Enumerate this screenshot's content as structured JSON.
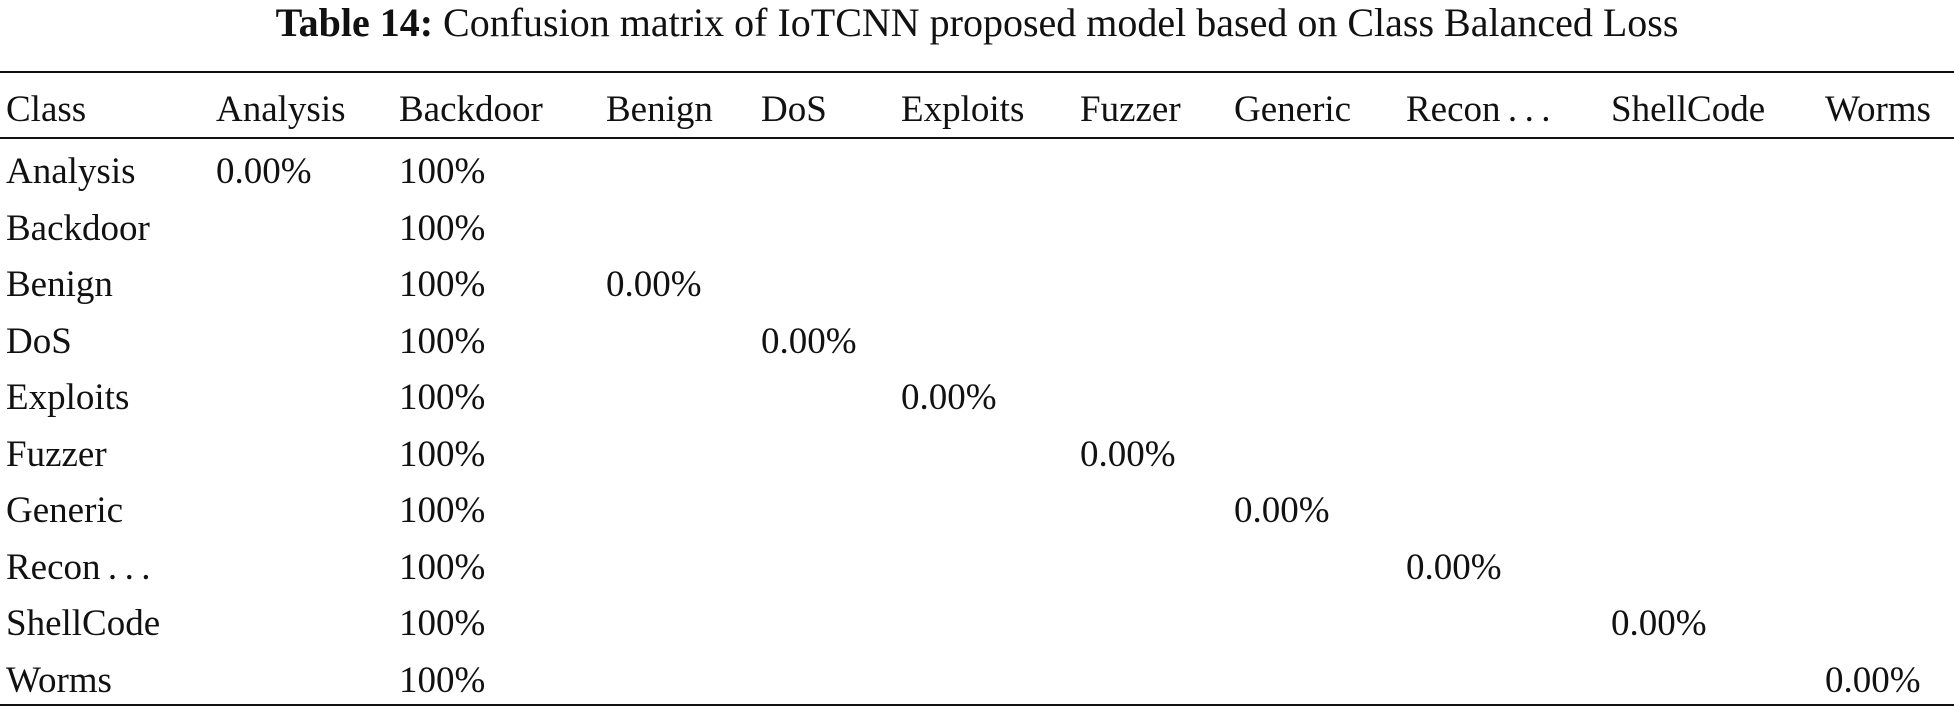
{
  "title": {
    "label": "Table 14:",
    "text": "Confusion matrix of IoTCNN proposed model based on Class Balanced Loss"
  },
  "table": {
    "header": [
      "Class",
      "Analysis",
      "Backdoor",
      "Benign",
      "DoS",
      "Exploits",
      "Fuzzer",
      "Generic",
      "Recon . . .",
      "ShellCode",
      "Worms"
    ],
    "rows": [
      [
        "Analysis",
        "0.00%",
        "100%",
        null,
        null,
        null,
        null,
        null,
        null,
        null,
        null
      ],
      [
        "Backdoor",
        null,
        "100%",
        null,
        null,
        null,
        null,
        null,
        null,
        null,
        null
      ],
      [
        "Benign",
        null,
        "100%",
        "0.00%",
        null,
        null,
        null,
        null,
        null,
        null,
        null
      ],
      [
        "DoS",
        null,
        "100%",
        null,
        "0.00%",
        null,
        null,
        null,
        null,
        null,
        null
      ],
      [
        "Exploits",
        null,
        "100%",
        null,
        null,
        "0.00%",
        null,
        null,
        null,
        null,
        null
      ],
      [
        "Fuzzer",
        null,
        "100%",
        null,
        null,
        null,
        "0.00%",
        null,
        null,
        null,
        null
      ],
      [
        "Generic",
        null,
        "100%",
        null,
        null,
        null,
        null,
        "0.00%",
        null,
        null,
        null
      ],
      [
        "Recon . . .",
        null,
        "100%",
        null,
        null,
        null,
        null,
        null,
        "0.00%",
        null,
        null
      ],
      [
        "ShellCode",
        null,
        "100%",
        null,
        null,
        null,
        null,
        null,
        null,
        "0.00%",
        null
      ],
      [
        "Worms",
        null,
        "100%",
        null,
        null,
        null,
        null,
        null,
        null,
        null,
        "0.00%"
      ]
    ]
  }
}
